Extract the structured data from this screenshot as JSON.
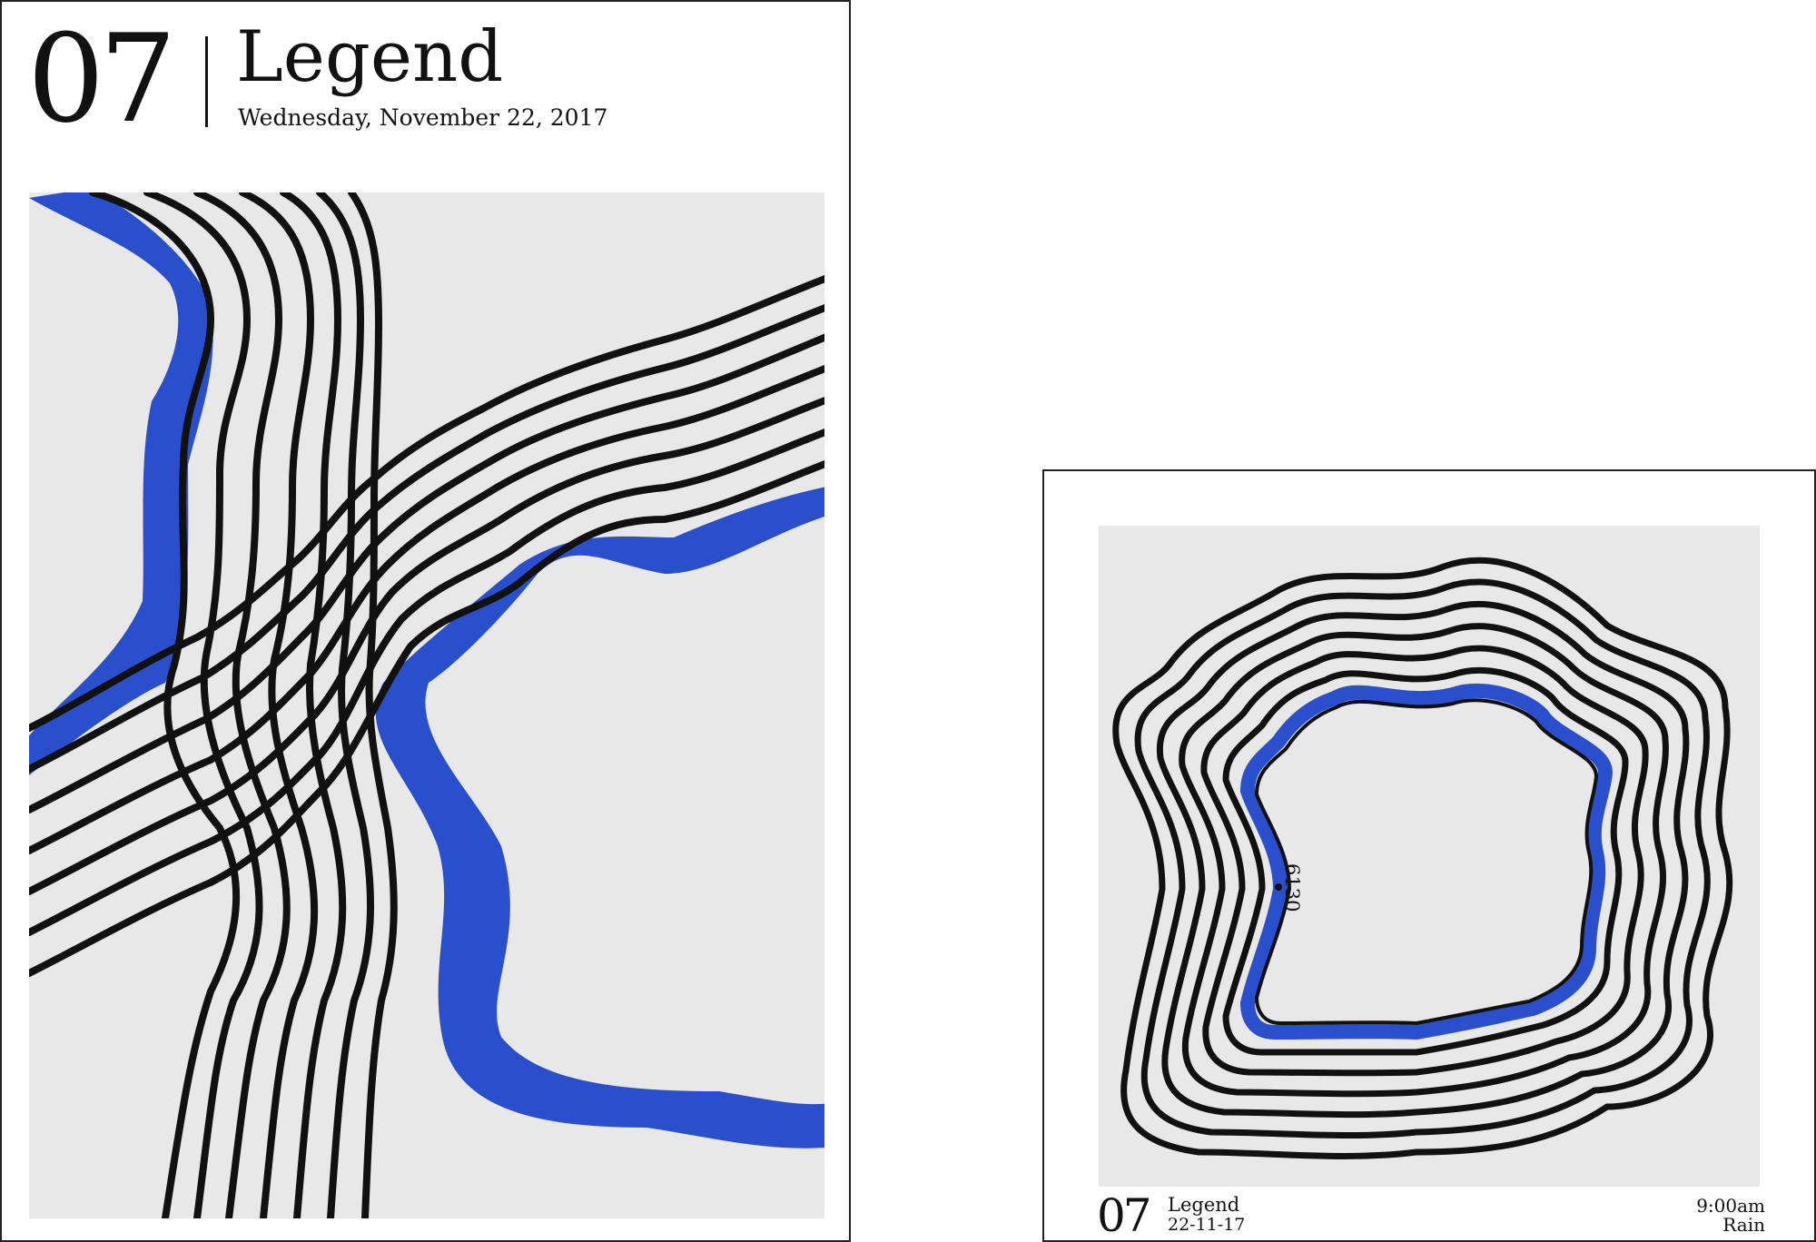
{
  "poster": {
    "number": "07",
    "title": "Legend",
    "date": "Wednesday, November 22, 2017"
  },
  "card": {
    "number": "07",
    "title": "Legend",
    "date": "22-11-17",
    "time": "9:00am",
    "condition": "Rain",
    "contour_label": "6130"
  },
  "colors": {
    "accent": "#2a4fcc",
    "line": "#111111",
    "panel": "#e8e8e8"
  }
}
